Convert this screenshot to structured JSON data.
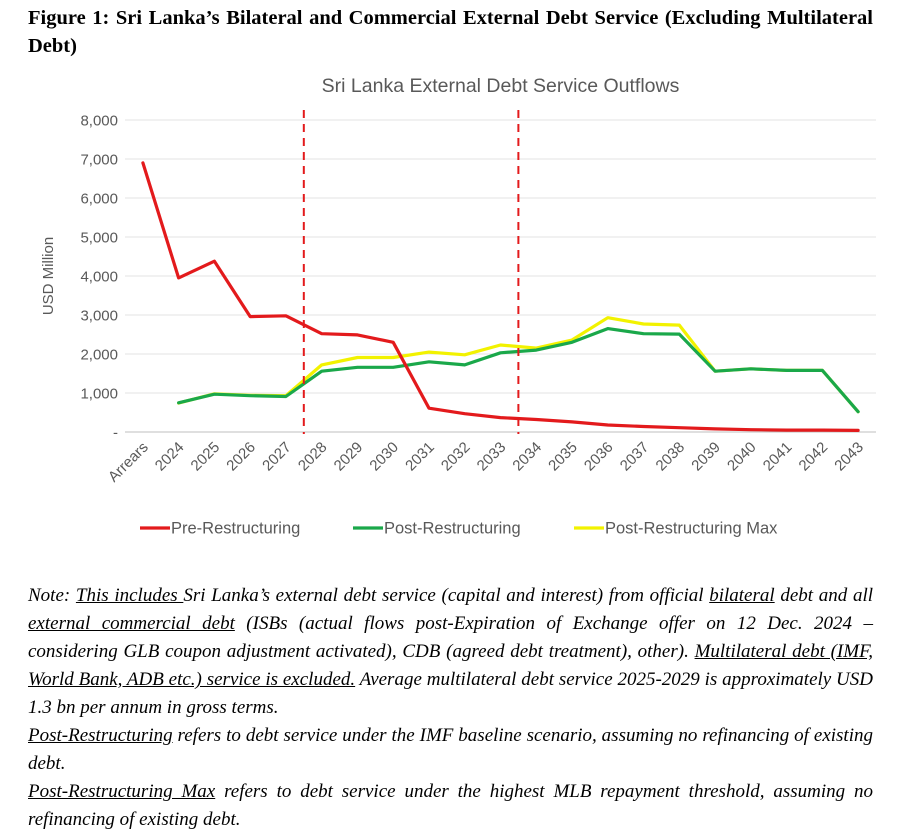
{
  "figure_title": "Figure 1: Sri Lanka’s Bilateral and Commercial External Debt Service (Excluding Multilateral Debt)",
  "chart_data": {
    "type": "line",
    "title": "Sri Lanka External Debt Service Outflows",
    "xlabel": "",
    "ylabel": "USD Million",
    "ylim": [
      0,
      8000
    ],
    "yticks": [
      0,
      1000,
      2000,
      3000,
      4000,
      5000,
      6000,
      7000,
      8000
    ],
    "ytick_labels": [
      "-",
      "1,000",
      "2,000",
      "3,000",
      "4,000",
      "5,000",
      "6,000",
      "7,000",
      "8,000"
    ],
    "categories": [
      "Arrears",
      "2024",
      "2025",
      "2026",
      "2027",
      "2028",
      "2029",
      "2030",
      "2031",
      "2032",
      "2033",
      "2034",
      "2035",
      "2036",
      "2037",
      "2038",
      "2039",
      "2040",
      "2041",
      "2042",
      "2043"
    ],
    "series": [
      {
        "name": "Pre-Restructuring",
        "color": "#e31a1c",
        "values": [
          6900,
          3950,
          4380,
          2960,
          2980,
          2520,
          2490,
          2300,
          610,
          470,
          370,
          320,
          260,
          180,
          140,
          110,
          80,
          60,
          50,
          50,
          40
        ]
      },
      {
        "name": "Post-Restructuring",
        "color": "#1aa84a",
        "values": [
          null,
          750,
          970,
          930,
          910,
          1560,
          1660,
          1660,
          1800,
          1720,
          2030,
          2100,
          2300,
          2650,
          2520,
          2510,
          1560,
          1620,
          1580,
          1580,
          520
        ]
      },
      {
        "name": "Post-Restructuring Max",
        "color": "#f2f200",
        "values": [
          null,
          740,
          980,
          940,
          930,
          1720,
          1910,
          1910,
          2050,
          1980,
          2230,
          2150,
          2360,
          2930,
          2770,
          2740,
          1560,
          1620,
          1580,
          1580,
          520
        ]
      }
    ],
    "vlines": [
      {
        "after_category": "2027",
        "color": "#e31a1c",
        "style": "dashed"
      },
      {
        "after_category": "2033",
        "color": "#e31a1c",
        "style": "dashed"
      }
    ],
    "legend_position": "bottom",
    "grid": true
  },
  "note": {
    "p1_prefix": "Note: ",
    "p1_u1": "This includes ",
    "p1_t1": "Sri Lanka’s external debt service (capital and interest) from official ",
    "p1_u2": "bilateral",
    "p1_t2": " debt and all ",
    "p1_u3": "external commercial debt",
    "p1_t3": " (ISBs (actual flows post-Expiration of Exchange offer on 12 Dec. 2024 – considering GLB coupon adjustment activated), CDB (agreed debt treatment), other). ",
    "p1_u4": "Multilateral debt (IMF, World Bank, ADB etc.) service is excluded.",
    "p1_t4": " Average multilateral debt service 2025-2029 is approximately USD 1.3 bn per annum in gross terms.",
    "p2_u": "Post-Restructuring",
    "p2_t": " refers to debt service under the IMF baseline scenario, assuming no refinancing of existing debt.",
    "p3_u": "Post-Restructuring Max",
    "p3_t": " refers to debt service under the highest MLB repayment threshold, assuming no refinancing of existing debt."
  }
}
